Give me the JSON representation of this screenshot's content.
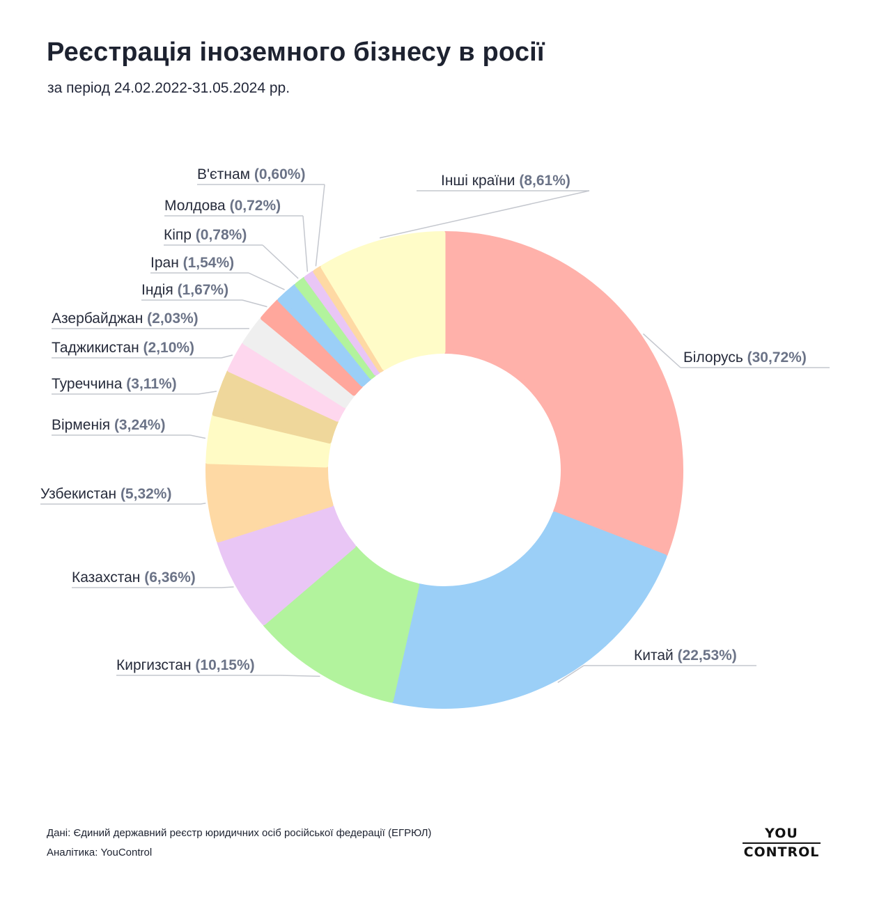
{
  "header": {
    "title": "Реєстрація іноземного бізнесу в росії",
    "subtitle": "за період 24.02.2022-31.05.2024 рр."
  },
  "footer": {
    "source": "Дані: Єдиний державний реєстр юридичних осіб російської федерації (ЕГРЮЛ)",
    "analytics": "Аналітика: YouControl"
  },
  "logo": {
    "line1": "YOU",
    "line2": "CONTROL"
  },
  "chart_data": {
    "type": "pie",
    "variant": "donut",
    "title": "Реєстрація іноземного бізнесу в росії",
    "subtitle": "за період 24.02.2022-31.05.2024 рр.",
    "legend": "none",
    "slices": [
      {
        "label": "Білорусь",
        "value": 30.72,
        "display": "(30,72%)",
        "color": "#ffb1aa"
      },
      {
        "label": "Китай",
        "value": 22.53,
        "display": "(22,53%)",
        "color": "#9bcff7"
      },
      {
        "label": "Киргизстан",
        "value": 10.15,
        "display": "(10,15%)",
        "color": "#b2f39d"
      },
      {
        "label": "Казахстан",
        "value": 6.36,
        "display": "(6,36%)",
        "color": "#e9c6f5"
      },
      {
        "label": "Узбекистан",
        "value": 5.32,
        "display": "(5,32%)",
        "color": "#fed9a4"
      },
      {
        "label": "Вірменія",
        "value": 3.24,
        "display": "(3,24%)",
        "color": "#fffbc5"
      },
      {
        "label": "Туреччина",
        "value": 3.11,
        "display": "(3,11%)",
        "color": "#efd79b"
      },
      {
        "label": "Таджикистан",
        "value": 2.1,
        "display": "(2,10%)",
        "color": "#fed7ee"
      },
      {
        "label": "Азербайджан",
        "value": 2.03,
        "display": "(2,03%)",
        "color": "#efefef"
      },
      {
        "label": "Індія",
        "value": 1.67,
        "display": "(1,67%)",
        "color": "#ffa79c"
      },
      {
        "label": "Іран",
        "value": 1.54,
        "display": "(1,54%)",
        "color": "#9bcff7"
      },
      {
        "label": "Кіпр",
        "value": 0.78,
        "display": "(0,78%)",
        "color": "#b2f39d"
      },
      {
        "label": "Молдова",
        "value": 0.72,
        "display": "(0,72%)",
        "color": "#e9c6f5"
      },
      {
        "label": "В'єтнам",
        "value": 0.6,
        "display": "(0,60%)",
        "color": "#fed9a4"
      },
      {
        "label": "Інші країни",
        "value": 8.61,
        "display": "(8,61%)",
        "color": "#fffcc8"
      }
    ]
  }
}
